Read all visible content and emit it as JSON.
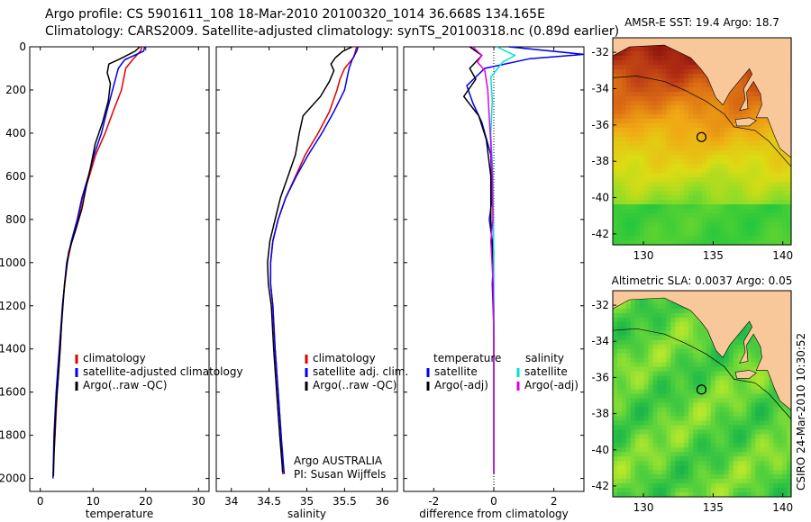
{
  "header": {
    "line1": "Argo profile: CS 5901611_108 18-Mar-2010 20100320_1014 36.668S 134.165E",
    "line2": "Climatology: CARS2009. Satellite-adjusted climatology: synTS_20100318.nc (0.89d earlier)"
  },
  "side_stamp": "CSIRO 24-Mar-2010 10:30:52",
  "colors": {
    "red": "#e00000",
    "blue": "#0000ee",
    "black": "#000000",
    "cyan": "#00e0e0",
    "magenta": "#e000e0",
    "land": "#f8c89a"
  },
  "chart_data": [
    {
      "type": "line",
      "xlabel": "temperature",
      "xlim": [
        -2,
        32
      ],
      "xticks": [
        0,
        10,
        20,
        30
      ],
      "ylim": [
        2060,
        0
      ],
      "yticks": [
        0,
        200,
        400,
        600,
        800,
        1000,
        1200,
        1400,
        1600,
        1800,
        2000
      ],
      "legend": [
        "climatology",
        "satellite-adjusted climatology",
        "Argo(..raw -QC)"
      ],
      "series": [
        {
          "name": "climatology",
          "color": "red",
          "points": [
            [
              19.3,
              0
            ],
            [
              19.0,
              20
            ],
            [
              17.5,
              60
            ],
            [
              16.2,
              100
            ],
            [
              15.4,
              200
            ],
            [
              13.8,
              300
            ],
            [
              12.3,
              400
            ],
            [
              10.5,
              500
            ],
            [
              9.3,
              600
            ],
            [
              8.0,
              700
            ],
            [
              7.2,
              800
            ],
            [
              6.0,
              900
            ],
            [
              5.1,
              1000
            ],
            [
              4.2,
              1200
            ],
            [
              3.8,
              1400
            ],
            [
              3.2,
              1600
            ],
            [
              2.8,
              1800
            ],
            [
              2.6,
              1880
            ]
          ]
        },
        {
          "name": "satellite-adjusted climatology",
          "color": "blue",
          "points": [
            [
              19.8,
              0
            ],
            [
              19.6,
              20
            ],
            [
              16.0,
              60
            ],
            [
              14.8,
              100
            ],
            [
              13.7,
              200
            ],
            [
              12.6,
              300
            ],
            [
              11.6,
              400
            ],
            [
              10.2,
              500
            ],
            [
              9.1,
              600
            ],
            [
              7.9,
              700
            ],
            [
              7.0,
              800
            ],
            [
              5.9,
              900
            ],
            [
              5.0,
              1000
            ],
            [
              4.2,
              1200
            ],
            [
              3.6,
              1400
            ],
            [
              3.0,
              1600
            ],
            [
              2.6,
              1800
            ],
            [
              2.4,
              2000
            ]
          ]
        },
        {
          "name": "Argo(..raw -QC)",
          "color": "black",
          "points": [
            [
              18.9,
              0
            ],
            [
              18.0,
              20
            ],
            [
              15.2,
              55
            ],
            [
              13.0,
              80
            ],
            [
              12.7,
              120
            ],
            [
              13.3,
              170
            ],
            [
              12.9,
              250
            ],
            [
              11.8,
              350
            ],
            [
              10.4,
              450
            ],
            [
              9.6,
              550
            ],
            [
              8.7,
              650
            ],
            [
              7.9,
              750
            ],
            [
              6.7,
              850
            ],
            [
              5.4,
              950
            ],
            [
              4.6,
              1100
            ],
            [
              4.0,
              1300
            ],
            [
              3.5,
              1500
            ],
            [
              2.9,
              1700
            ],
            [
              2.6,
              1900
            ],
            [
              2.5,
              1990
            ]
          ]
        }
      ]
    },
    {
      "type": "line",
      "xlabel": "salinity",
      "xlim": [
        33.8,
        36.2
      ],
      "xticks": [
        34,
        34.5,
        35,
        35.5,
        36
      ],
      "ylim": [
        2060,
        0
      ],
      "legend": [
        "climatology",
        "satellite adj. clim.",
        "Argo(..raw -QC)"
      ],
      "annotation": [
        "Argo AUSTRALIA",
        "PI: Susan Wijffels"
      ],
      "series": [
        {
          "name": "climatology",
          "color": "red",
          "points": [
            [
              35.66,
              0
            ],
            [
              35.62,
              50
            ],
            [
              35.5,
              100
            ],
            [
              35.44,
              150
            ],
            [
              35.4,
              200
            ],
            [
              35.3,
              300
            ],
            [
              35.15,
              400
            ],
            [
              34.98,
              500
            ],
            [
              34.85,
              600
            ],
            [
              34.72,
              700
            ],
            [
              34.62,
              800
            ],
            [
              34.55,
              900
            ],
            [
              34.52,
              1000
            ],
            [
              34.52,
              1100
            ],
            [
              34.55,
              1200
            ],
            [
              34.58,
              1400
            ],
            [
              34.62,
              1600
            ],
            [
              34.66,
              1800
            ],
            [
              34.68,
              1980
            ]
          ]
        },
        {
          "name": "satellite adj. clim.",
          "color": "blue",
          "points": [
            [
              35.68,
              0
            ],
            [
              35.66,
              20
            ],
            [
              35.6,
              60
            ],
            [
              35.56,
              100
            ],
            [
              35.5,
              200
            ],
            [
              35.36,
              300
            ],
            [
              35.2,
              400
            ],
            [
              35.02,
              500
            ],
            [
              34.86,
              600
            ],
            [
              34.72,
              700
            ],
            [
              34.62,
              800
            ],
            [
              34.55,
              900
            ],
            [
              34.52,
              1000
            ],
            [
              34.52,
              1100
            ],
            [
              34.55,
              1200
            ],
            [
              34.58,
              1400
            ],
            [
              34.62,
              1600
            ],
            [
              34.66,
              1800
            ],
            [
              34.7,
              1980
            ]
          ]
        },
        {
          "name": "Argo(..raw -QC)",
          "color": "black",
          "points": [
            [
              35.6,
              0
            ],
            [
              35.48,
              20
            ],
            [
              35.38,
              50
            ],
            [
              35.32,
              80
            ],
            [
              35.36,
              110
            ],
            [
              35.3,
              160
            ],
            [
              35.18,
              230
            ],
            [
              34.95,
              320
            ],
            [
              34.9,
              400
            ],
            [
              34.85,
              500
            ],
            [
              34.75,
              600
            ],
            [
              34.65,
              700
            ],
            [
              34.58,
              800
            ],
            [
              34.51,
              900
            ],
            [
              34.48,
              1000
            ],
            [
              34.49,
              1100
            ],
            [
              34.53,
              1200
            ],
            [
              34.56,
              1400
            ],
            [
              34.6,
              1600
            ],
            [
              34.64,
              1800
            ],
            [
              34.68,
              1970
            ]
          ]
        }
      ]
    },
    {
      "type": "line",
      "xlabel": "difference from climatology",
      "xlim": [
        -3,
        3
      ],
      "xticks": [
        -2,
        0,
        2
      ],
      "ylim": [
        2060,
        0
      ],
      "legend_left": {
        "title": "temperature",
        "items": [
          "satellite",
          "Argo(-adj)"
        ]
      },
      "legend_right": {
        "title": "salinity",
        "items": [
          "satellite",
          "Argo(-adj)"
        ]
      },
      "series": [
        {
          "name": "temperature satellite",
          "color": "blue",
          "points": [
            [
              0.5,
              0
            ],
            [
              3.0,
              35
            ],
            [
              1.2,
              55
            ],
            [
              -0.3,
              100
            ],
            [
              -0.9,
              180
            ],
            [
              -0.7,
              260
            ],
            [
              -0.4,
              350
            ],
            [
              -0.1,
              500
            ],
            [
              -0.05,
              700
            ],
            [
              -0.15,
              800
            ],
            [
              0,
              950
            ],
            [
              -0.05,
              1100
            ],
            [
              0,
              1300
            ],
            [
              0,
              1600
            ],
            [
              0,
              1980
            ]
          ]
        },
        {
          "name": "temperature Argo(-adj)",
          "color": "black",
          "points": [
            [
              -0.8,
              0
            ],
            [
              -0.4,
              40
            ],
            [
              -0.8,
              100
            ],
            [
              -0.6,
              150
            ],
            [
              -1.0,
              230
            ],
            [
              -0.5,
              320
            ],
            [
              -0.25,
              430
            ],
            [
              -0.1,
              600
            ],
            [
              -0.1,
              800
            ],
            [
              -0.05,
              950
            ],
            [
              0,
              1200
            ],
            [
              0,
              1600
            ],
            [
              0,
              1980
            ]
          ]
        },
        {
          "name": "salinity satellite",
          "color": "cyan",
          "points": [
            [
              0.1,
              0
            ],
            [
              0.7,
              40
            ],
            [
              0.3,
              70
            ],
            [
              -0.1,
              140
            ],
            [
              -0.05,
              250
            ],
            [
              -0.1,
              400
            ],
            [
              -0.03,
              600
            ],
            [
              0,
              1000
            ],
            [
              0,
              1980
            ]
          ]
        },
        {
          "name": "salinity Argo(-adj)",
          "color": "magenta",
          "points": [
            [
              -0.7,
              0
            ],
            [
              -0.4,
              40
            ],
            [
              -0.55,
              70
            ],
            [
              -0.3,
              110
            ],
            [
              -0.2,
              200
            ],
            [
              -0.15,
              330
            ],
            [
              -0.1,
              450
            ],
            [
              -0.05,
              600
            ],
            [
              -0.03,
              800
            ],
            [
              -0.1,
              900
            ],
            [
              -0.02,
              1100
            ],
            [
              0,
              1400
            ],
            [
              0,
              1980
            ]
          ]
        }
      ]
    }
  ],
  "maps": [
    {
      "title": "AMSR-E SST: 19.4 Argo: 18.7",
      "lon_ticks": [
        130,
        135,
        140
      ],
      "lat_ticks": [
        -32,
        -34,
        -36,
        -38,
        -40,
        -42
      ],
      "argo_marker": {
        "lon": 134.165,
        "lat": -36.668
      }
    },
    {
      "title": "Altimetric SLA: 0.0037 Argo: 0.05",
      "lon_ticks": [
        130,
        135,
        140
      ],
      "lat_ticks": [
        -32,
        -34,
        -36,
        -38,
        -40,
        -42
      ],
      "argo_marker": {
        "lon": 134.165,
        "lat": -36.668
      }
    }
  ]
}
